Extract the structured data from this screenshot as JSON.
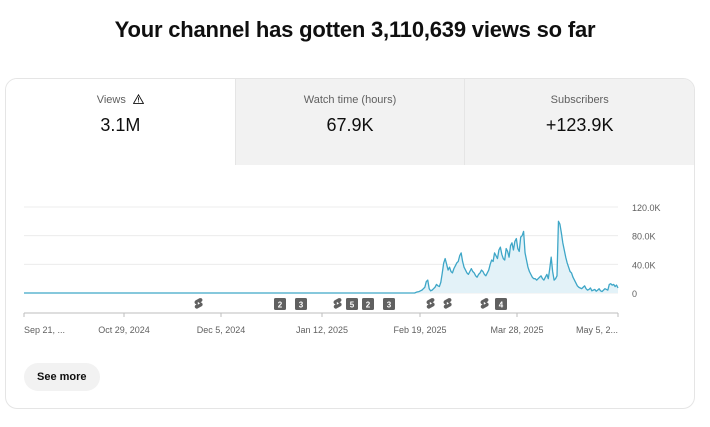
{
  "headline": "Your channel has gotten 3,110,639 views so far",
  "tabs": [
    {
      "label": "Views",
      "value": "3.1M",
      "active": true,
      "icon": "warning-icon"
    },
    {
      "label": "Watch time (hours)",
      "value": "67.9K",
      "active": false
    },
    {
      "label": "Subscribers",
      "value": "+123.9K",
      "active": false
    }
  ],
  "chart_data": {
    "type": "area",
    "y_ticks": [
      "120.0K",
      "80.0K",
      "40.0K",
      "0"
    ],
    "x_ticks": [
      "Sep 21, ...",
      "Oct 29, 2024",
      "Dec 5, 2024",
      "Jan 12, 2025",
      "Feb 19, 2025",
      "Mar 28, 2025",
      "May 5, 2..."
    ],
    "ylim": [
      0,
      120000
    ],
    "grid": true,
    "line_color": "#3ea6c7",
    "fill_color": "#e3f2f8",
    "series": [
      {
        "values": [
          0,
          0,
          0,
          0,
          0,
          0,
          0,
          0,
          0,
          0,
          0,
          0,
          0,
          0,
          0,
          0,
          0,
          0,
          0,
          0,
          0,
          0,
          0,
          0,
          0,
          0,
          0,
          0,
          0,
          0,
          0,
          0,
          0,
          0,
          0,
          0,
          0,
          0,
          0,
          0,
          0,
          0,
          0,
          0,
          0,
          0,
          0,
          0,
          0,
          0,
          0,
          0,
          0,
          0,
          0,
          0,
          0,
          0,
          0,
          0,
          0,
          0,
          0,
          0,
          0,
          0,
          0,
          0,
          0,
          0,
          0,
          0,
          0,
          0,
          0,
          0,
          0,
          0,
          0,
          0,
          0,
          0,
          0,
          0,
          0,
          0,
          0,
          0,
          0,
          0,
          0,
          0,
          0,
          0,
          0,
          0,
          0,
          0,
          0,
          0,
          0,
          0,
          0,
          0,
          0,
          0,
          0,
          0,
          0,
          0,
          0,
          0,
          0,
          0,
          0,
          0,
          0,
          0,
          0,
          0,
          0,
          0,
          0,
          0,
          0,
          0,
          0,
          0,
          0,
          0,
          0,
          0,
          0,
          0,
          0,
          0,
          0,
          0,
          0,
          0,
          0,
          0,
          0,
          0,
          0,
          0,
          0,
          0,
          0,
          0,
          0,
          0,
          0,
          0,
          0,
          0,
          0,
          0,
          0,
          0,
          0,
          0,
          0,
          0,
          0,
          0,
          0,
          0,
          0,
          0,
          0,
          0,
          0,
          0,
          0,
          0,
          0,
          0,
          0,
          0,
          0,
          0,
          0,
          0,
          0,
          0,
          0,
          0,
          0,
          0,
          0,
          0,
          0,
          0,
          0,
          0,
          0,
          0,
          0,
          0,
          0,
          0,
          0,
          0,
          0,
          0,
          0,
          0,
          0,
          0,
          0,
          0,
          0,
          0,
          0,
          0,
          0,
          0,
          0,
          0,
          0,
          0,
          0,
          0,
          0,
          0,
          0,
          0,
          0,
          0,
          0,
          0,
          0,
          0,
          0,
          0,
          0,
          0,
          0,
          0,
          0,
          0,
          0,
          0,
          0,
          0,
          0,
          0,
          0,
          0,
          0,
          0,
          0,
          0,
          0,
          0,
          0,
          0,
          0,
          0,
          0,
          0,
          0,
          0,
          0,
          0,
          0,
          0,
          0,
          0,
          1000,
          1500,
          2000,
          3000,
          4000,
          6000,
          8000,
          16000,
          18000,
          6000,
          3000,
          4000,
          6000,
          8000,
          12000,
          10000,
          9000,
          15000,
          28000,
          42000,
          48000,
          40000,
          32000,
          36000,
          30000,
          28000,
          34000,
          38000,
          42000,
          44000,
          52000,
          56000,
          44000,
          36000,
          32000,
          28000,
          26000,
          30000,
          34000,
          30000,
          28000,
          24000,
          22000,
          26000,
          28000,
          32000,
          30000,
          26000,
          24000,
          28000,
          32000,
          40000,
          46000,
          44000,
          56000,
          52000,
          48000,
          60000,
          64000,
          54000,
          48000,
          46000,
          62000,
          58000,
          50000,
          66000,
          70000,
          60000,
          72000,
          76000,
          62000,
          58000,
          78000,
          80000,
          86000,
          56000,
          46000,
          36000,
          30000,
          26000,
          22000,
          20000,
          20000,
          18000,
          20000,
          22000,
          24000,
          20000,
          18000,
          22000,
          26000,
          20000,
          34000,
          50000,
          30000,
          18000,
          20000,
          24000,
          100000,
          96000,
          84000,
          70000,
          60000,
          50000,
          42000,
          36000,
          30000,
          28000,
          22000,
          18000,
          14000,
          10000,
          8000,
          7000,
          6000,
          8000,
          10000,
          6000,
          4000,
          5000,
          7000,
          3000,
          4000,
          5000,
          2500,
          4000,
          6000,
          3000,
          2000,
          4000,
          6000,
          5000,
          4000,
          12000,
          13000,
          11000,
          12000,
          9000,
          11000,
          7000
        ]
      }
    ],
    "markers": [
      {
        "label": "",
        "icon": "shorts-icon"
      },
      {
        "label": "2",
        "icon": ""
      },
      {
        "label": "3",
        "icon": ""
      },
      {
        "label": "",
        "icon": "shorts-icon"
      },
      {
        "label": "5",
        "icon": ""
      },
      {
        "label": "2",
        "icon": ""
      },
      {
        "label": "3",
        "icon": ""
      },
      {
        "label": "",
        "icon": "shorts-icon"
      },
      {
        "label": "",
        "icon": "shorts-icon"
      },
      {
        "label": "",
        "icon": "shorts-icon"
      },
      {
        "label": "4",
        "icon": ""
      }
    ]
  },
  "see_more_label": "See more"
}
